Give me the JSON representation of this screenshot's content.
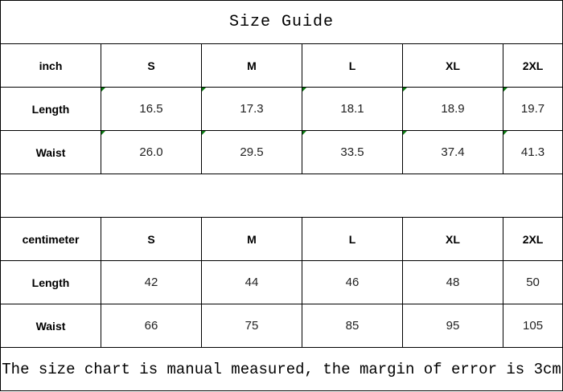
{
  "title": "Size Guide",
  "inch": {
    "header": [
      "inch",
      "S",
      "M",
      "L",
      "XL",
      "2XL"
    ],
    "rows": [
      [
        "Length",
        "16.5",
        "17.3",
        "18.1",
        "18.9",
        "19.7"
      ],
      [
        "Waist",
        "26.0",
        "29.5",
        "33.5",
        "37.4",
        "41.3"
      ]
    ]
  },
  "centimeter": {
    "header": [
      "centimeter",
      "S",
      "M",
      "L",
      "XL",
      "2XL"
    ],
    "rows": [
      [
        "Length",
        "42",
        "44",
        "46",
        "48",
        "50"
      ],
      [
        "Waist",
        "66",
        "75",
        "85",
        "95",
        "105"
      ]
    ]
  },
  "footer": "The size chart is manual measured, the margin of error is 3cm",
  "colors": {
    "error_marker": "#0a7a12",
    "border": "#000000"
  }
}
